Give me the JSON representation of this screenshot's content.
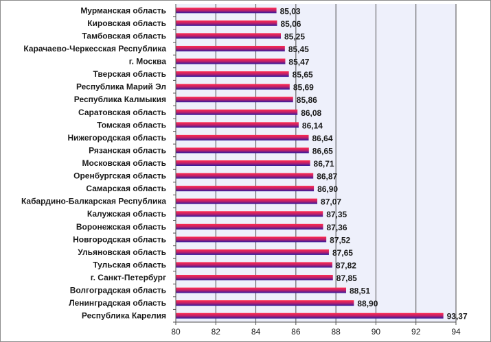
{
  "chart_data": {
    "type": "bar",
    "orientation": "horizontal",
    "title": "",
    "xlabel": "",
    "ylabel": "",
    "xlim": [
      80,
      94
    ],
    "x_ticks": [
      80,
      82,
      84,
      86,
      88,
      90,
      92,
      94
    ],
    "grid": "vertical",
    "legend": "none",
    "colors": {
      "bar_top": "#ff2a4d",
      "bar_mid": "#c0206a",
      "bar_bottom": "#2d1a9e",
      "plot_bg": "#eef0fb",
      "grid": "#4d4d4d"
    },
    "categories": [
      "Мурманская область",
      "Кировская область",
      "Тамбовская область",
      "Карачаево-Черкесская Республика",
      "г. Москва",
      "Тверская область",
      "Республика Марий Эл",
      "Республика Калмыкия",
      "Саратовская область",
      "Томская область",
      "Нижегородская область",
      "Рязанская область",
      "Московская область",
      "Оренбургская область",
      "Самарская область",
      "Кабардино-Балкарская Республика",
      "Калужская область",
      "Воронежская область",
      "Новгородская область",
      "Ульяновская область",
      "Тульская область",
      "г. Санкт-Петербург",
      "Волгоградская область",
      "Ленинградская область",
      "Республика Карелия"
    ],
    "values": [
      85.03,
      85.06,
      85.25,
      85.45,
      85.47,
      85.65,
      85.69,
      85.86,
      86.08,
      86.14,
      86.64,
      86.65,
      86.71,
      86.87,
      86.9,
      87.07,
      87.35,
      87.36,
      87.52,
      87.65,
      87.82,
      87.85,
      88.51,
      88.9,
      93.37
    ],
    "value_labels": [
      "85,03",
      "85,06",
      "85,25",
      "85,45",
      "85,47",
      "85,65",
      "85,69",
      "85,86",
      "86,08",
      "86,14",
      "86,64",
      "86,65",
      "86,71",
      "86,87",
      "86,90",
      "87,07",
      "87,35",
      "87,36",
      "87,52",
      "87,65",
      "87,82",
      "87,85",
      "88,51",
      "88,90",
      "93,37"
    ]
  }
}
